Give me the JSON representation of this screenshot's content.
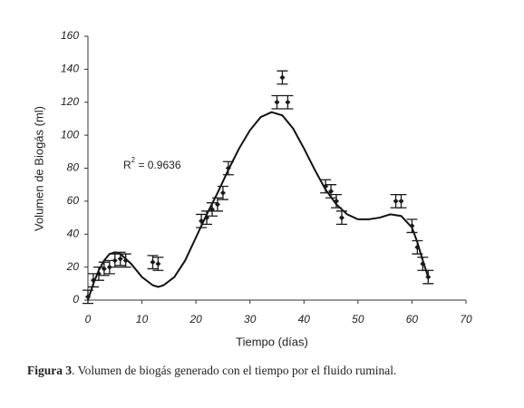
{
  "chart_data": {
    "type": "scatter",
    "x_label": "Tiempo (días)",
    "y_label": "Volumen de Biogás (ml)",
    "annotation": {
      "base": "R",
      "sup": "2",
      "rest": " = 0.9636"
    },
    "caption": {
      "label": "Figura 3",
      "text": ". Volumen de biogás generado con el tiempo por el fluido ruminal."
    },
    "x": [
      0,
      1,
      2,
      3,
      4,
      5,
      6,
      7,
      12,
      13,
      21,
      22,
      23,
      24,
      25,
      26,
      35,
      36,
      37,
      44,
      45,
      46,
      47,
      57,
      58,
      60,
      61,
      62,
      63
    ],
    "values": [
      2,
      12,
      16,
      19,
      20,
      24,
      25,
      24,
      23,
      22,
      48,
      50,
      55,
      58,
      65,
      80,
      120,
      135,
      120,
      69,
      66,
      60,
      50,
      60,
      60,
      45,
      32,
      22,
      14
    ],
    "errors": [
      4,
      4,
      4,
      4,
      4,
      4,
      4,
      4,
      4,
      4,
      4,
      4,
      4,
      4,
      4,
      4,
      4,
      4,
      4,
      4,
      4,
      4,
      4,
      4,
      4,
      4,
      4,
      4,
      4
    ],
    "color": "#1a1a1a",
    "fit": {
      "x": [
        0,
        1,
        2,
        3,
        4,
        5,
        6,
        8,
        10,
        12,
        13,
        14,
        16,
        18,
        20,
        22,
        24,
        26,
        28,
        30,
        32,
        34,
        36,
        38,
        40,
        42,
        44,
        46,
        48,
        50,
        52,
        54,
        56,
        58,
        60,
        61,
        62,
        63
      ],
      "values": [
        0,
        10,
        18,
        24,
        28,
        29,
        28,
        22,
        14,
        9,
        8,
        9,
        14,
        24,
        38,
        52,
        65,
        79,
        92,
        103,
        111,
        114,
        112,
        104,
        92,
        79,
        67,
        58,
        52,
        49,
        49,
        50,
        52,
        51,
        44,
        35,
        24,
        14
      ]
    },
    "xlim": [
      0,
      70
    ],
    "xticks": [
      0,
      10,
      20,
      30,
      40,
      50,
      60,
      70
    ],
    "ylim": [
      0,
      160
    ],
    "yticks": [
      0,
      20,
      40,
      60,
      80,
      100,
      120,
      140,
      160
    ],
    "grid": false
  }
}
